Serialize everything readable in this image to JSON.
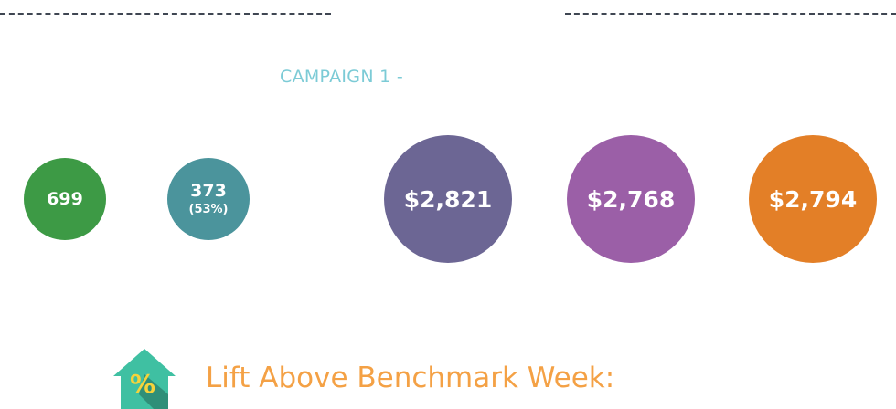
{
  "campaign": {
    "label": "CAMPAIGN 1 -"
  },
  "bubbles": [
    {
      "value": "699",
      "sub": "",
      "color": "#3d9a45"
    },
    {
      "value": "373",
      "sub": "(53%)",
      "color": "#4b949c"
    },
    {
      "value": "$2,821",
      "sub": "",
      "color": "#6c6694"
    },
    {
      "value": "$2,768",
      "sub": "",
      "color": "#9b5fa7"
    },
    {
      "value": "$2,794",
      "sub": "",
      "color": "#e37f27"
    }
  ],
  "lift": {
    "title": "Lift Above Benchmark Week:",
    "title_color": "#f4a145",
    "icon": "house-percent-icon",
    "icon_colors": {
      "house": "#3fc0a2",
      "shadow": "#2f8f78",
      "percent": "#f5d33b"
    }
  },
  "colors": {
    "dash": "#3f4652",
    "campaign_label": "#7ccbd6"
  }
}
